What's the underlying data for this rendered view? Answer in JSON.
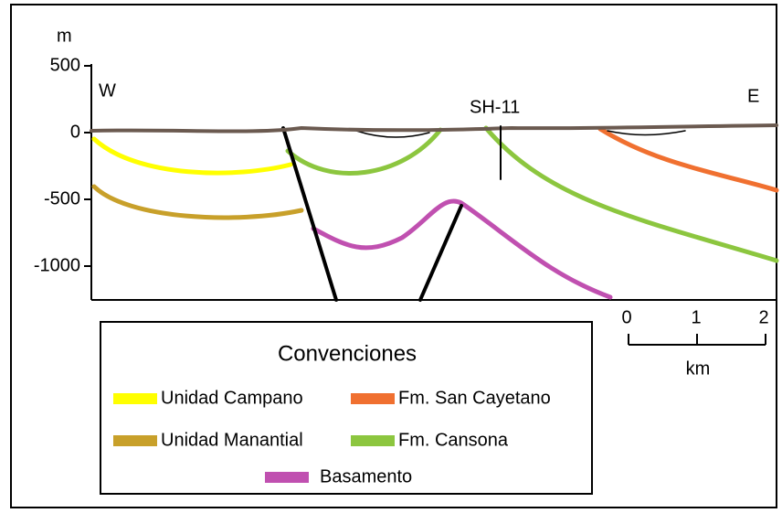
{
  "axis": {
    "unit": "m",
    "ticks": [
      "500",
      "0",
      "-500",
      "-1000"
    ]
  },
  "section": {
    "west": "W",
    "east": "E",
    "well": "SH-11"
  },
  "scale": {
    "ticks": [
      "0",
      "1",
      "2"
    ],
    "unit": "km"
  },
  "legend": {
    "title": "Convenciones",
    "items": [
      {
        "label": "Unidad Campano",
        "color": "#ffff00"
      },
      {
        "label": "Fm. San Cayetano",
        "color": "#f07030"
      },
      {
        "label": "Unidad Manantial",
        "color": "#c8a02a"
      },
      {
        "label": "Fm. Cansona",
        "color": "#8cc63f"
      },
      {
        "label": "Basamento",
        "color": "#c050b0"
      }
    ]
  }
}
